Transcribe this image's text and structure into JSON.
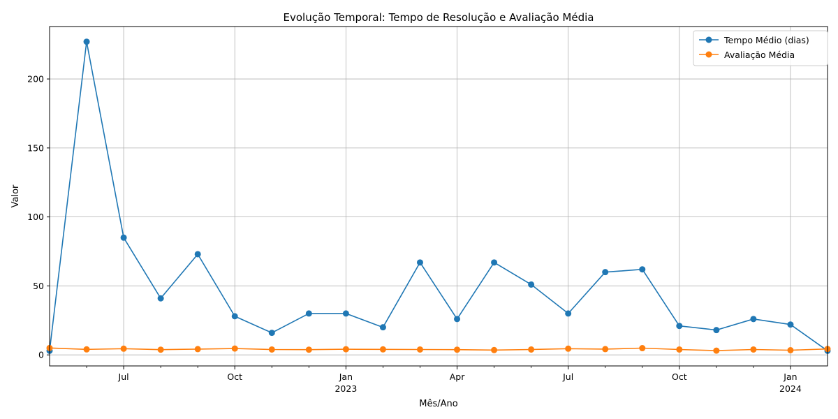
{
  "chart_data": {
    "type": "line",
    "title": "Evolução Temporal: Tempo de Resolução e Avaliação Média",
    "xlabel": "Mês/Ano",
    "ylabel": "Valor",
    "x": [
      "2022-05",
      "2022-06",
      "2022-07",
      "2022-08",
      "2022-09",
      "2022-10",
      "2022-11",
      "2022-12",
      "2023-01",
      "2023-02",
      "2023-03",
      "2023-04",
      "2023-05",
      "2023-06",
      "2023-07",
      "2023-08",
      "2023-09",
      "2023-10",
      "2023-11",
      "2023-12",
      "2024-01",
      "2024-02"
    ],
    "xlim": [
      "2022-05",
      "2024-02"
    ],
    "ylim": [
      -8,
      238
    ],
    "y_ticks": [
      0,
      50,
      100,
      150,
      200
    ],
    "x_ticks": [
      {
        "x": "2022-07",
        "label": "Jul",
        "year": ""
      },
      {
        "x": "2022-10",
        "label": "Oct",
        "year": ""
      },
      {
        "x": "2023-01",
        "label": "Jan",
        "year": "2023"
      },
      {
        "x": "2023-04",
        "label": "Apr",
        "year": ""
      },
      {
        "x": "2023-07",
        "label": "Jul",
        "year": ""
      },
      {
        "x": "2023-10",
        "label": "Oct",
        "year": ""
      },
      {
        "x": "2024-01",
        "label": "Jan",
        "year": "2024"
      }
    ],
    "minor_ticks": [
      "2022-06",
      "2022-08",
      "2022-09",
      "2022-11",
      "2022-12",
      "2023-02",
      "2023-03",
      "2023-05",
      "2023-06",
      "2023-08",
      "2023-09",
      "2023-11",
      "2023-12"
    ],
    "grid": true,
    "legend_position": "top-right",
    "series": [
      {
        "name": "Tempo Médio (dias)",
        "color": "#1f77b4",
        "marker": "circle",
        "values": [
          3,
          227,
          85,
          41,
          73,
          28,
          16,
          30,
          30,
          20,
          67,
          26,
          67,
          51,
          30,
          60,
          62,
          21,
          18,
          26,
          22,
          3
        ]
      },
      {
        "name": "Avaliação Média",
        "color": "#ff7f0e",
        "marker": "circle",
        "values": [
          5,
          4,
          4.5,
          3.8,
          4.2,
          4.6,
          3.9,
          3.8,
          4.1,
          4.0,
          3.9,
          3.8,
          3.5,
          3.9,
          4.5,
          4.2,
          4.9,
          3.9,
          3.1,
          3.9,
          3.4,
          4.3
        ]
      }
    ]
  }
}
